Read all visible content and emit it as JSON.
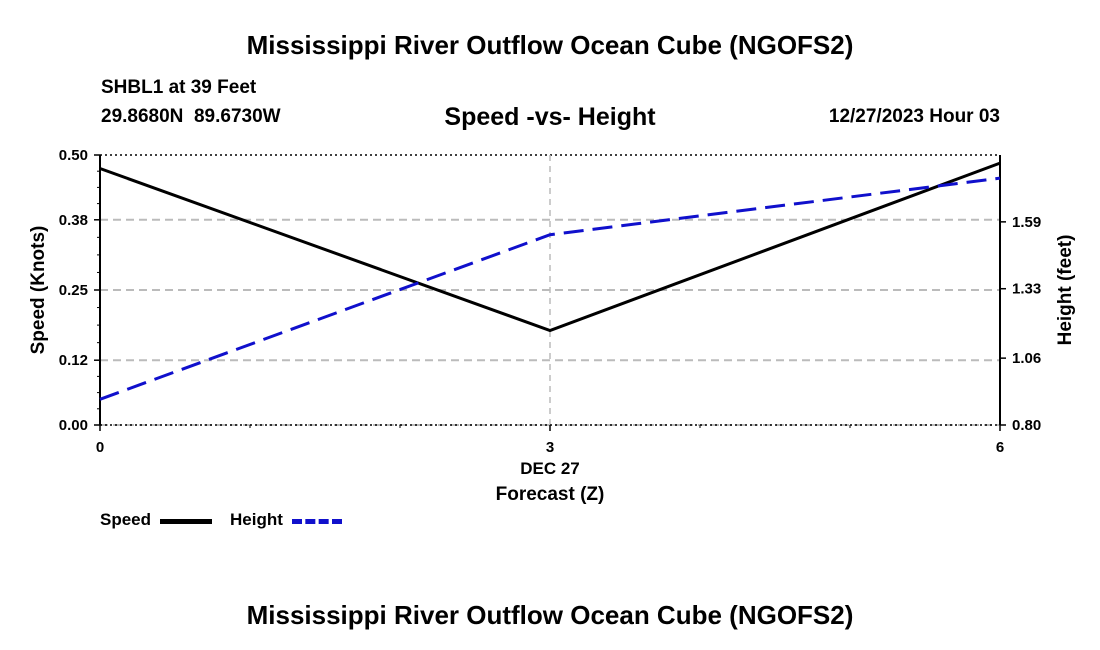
{
  "title": "Mississippi River Outflow Ocean Cube (NGOFS2)",
  "footer_title": "Mississippi River Outflow Ocean Cube (NGOFS2)",
  "station": {
    "name_depth": "SHBL1 at 39 Feet",
    "coords": "29.8680N  89.6730W",
    "datetime": "12/27/2023 Hour 03"
  },
  "chart_data": {
    "type": "line",
    "title": "Speed -vs- Height",
    "xlabel": "Forecast (Z)",
    "x_date_label": "DEC 27",
    "ylabel_left": "Speed (Knots)",
    "ylabel_right": "Height (feet)",
    "xlim": [
      0,
      6
    ],
    "x_ticks": [
      "0",
      "3",
      "6"
    ],
    "ylim_left": [
      0,
      0.5
    ],
    "y_ticks_left": [
      "0.00",
      "0.12",
      "0.25",
      "0.38",
      "0.50"
    ],
    "ylim_right": [
      0.8,
      1.85
    ],
    "y_ticks_right": [
      "0.80",
      "1.06",
      "1.33",
      "1.59"
    ],
    "grid": true,
    "legend_position": "bottom-left",
    "series": [
      {
        "name": "Speed",
        "axis": "left",
        "color": "#000000",
        "style": "solid",
        "x": [
          0,
          3,
          6
        ],
        "values": [
          0.475,
          0.175,
          0.485
        ]
      },
      {
        "name": "Height",
        "axis": "right",
        "color": "#1010cc",
        "style": "dashed",
        "x": [
          0,
          3,
          6
        ],
        "values": [
          0.9,
          1.54,
          1.76
        ]
      }
    ]
  }
}
